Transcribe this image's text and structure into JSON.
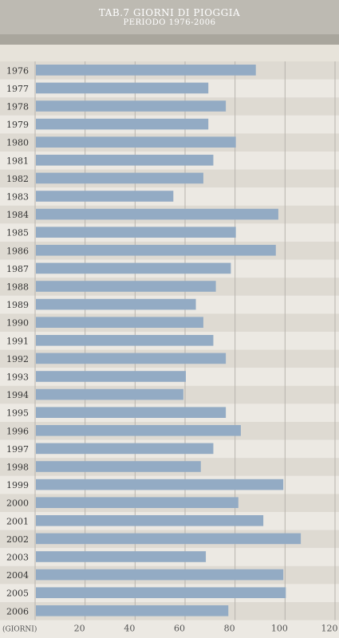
{
  "header": {
    "title": "TAB.7  GIORNI DI PIOGGIA",
    "subtitle": "PERIODO 1976-2006"
  },
  "colors": {
    "bar": "#93abc4",
    "row_dark": "#dedad2",
    "row_light": "#ece9e3",
    "grid": "#b8b4ad"
  },
  "chart_data": {
    "type": "bar",
    "orientation": "horizontal",
    "title": "TAB.7  GIORNI DI PIOGGIA",
    "subtitle": "PERIODO 1976-2006",
    "xlabel": "(GIORNI)",
    "xlim": [
      0,
      120
    ],
    "xticks": [
      20,
      40,
      60,
      80,
      100,
      120
    ],
    "grid": "vertical",
    "categories": [
      "1976",
      "1977",
      "1978",
      "1979",
      "1980",
      "1981",
      "1982",
      "1983",
      "1984",
      "1985",
      "1986",
      "1987",
      "1988",
      "1989",
      "1990",
      "1991",
      "1992",
      "1993",
      "1994",
      "1995",
      "1996",
      "1997",
      "1998",
      "1999",
      "2000",
      "2001",
      "2002",
      "2003",
      "2004",
      "2005",
      "2006"
    ],
    "values": [
      88,
      69,
      76,
      69,
      80,
      71,
      67,
      55,
      97,
      80,
      96,
      78,
      72,
      64,
      67,
      71,
      76,
      60,
      59,
      76,
      82,
      71,
      66,
      99,
      81,
      91,
      106,
      68,
      99,
      100,
      77
    ]
  }
}
